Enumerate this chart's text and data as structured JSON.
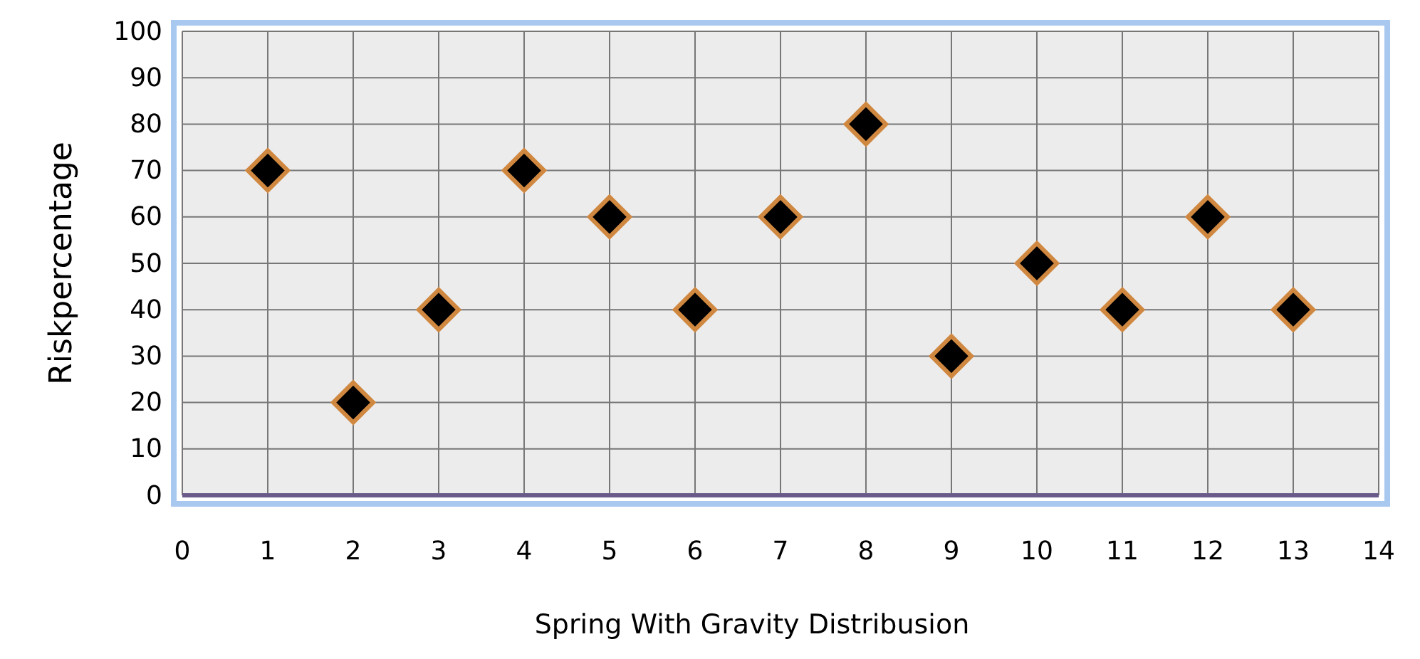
{
  "chart_data": {
    "type": "scatter",
    "xlabel": "Spring With Gravity Distribusion",
    "ylabel": "Riskpercentage",
    "x": [
      1,
      2,
      3,
      4,
      5,
      6,
      7,
      8,
      9,
      10,
      11,
      12,
      13
    ],
    "series": [
      {
        "color": "#000000",
        "values": [
          70,
          20,
          40,
          70,
          60,
          40,
          60,
          80,
          30,
          50,
          40,
          60,
          40
        ]
      }
    ],
    "xlim": [
      0,
      14
    ],
    "ylim": [
      0,
      100
    ],
    "xticks": [
      0,
      1,
      2,
      3,
      4,
      5,
      6,
      7,
      8,
      9,
      10,
      11,
      12,
      13,
      14
    ],
    "yticks": [
      0,
      10,
      20,
      30,
      40,
      50,
      60,
      70,
      80,
      90,
      100
    ],
    "grid": true,
    "marker": "diamond"
  }
}
